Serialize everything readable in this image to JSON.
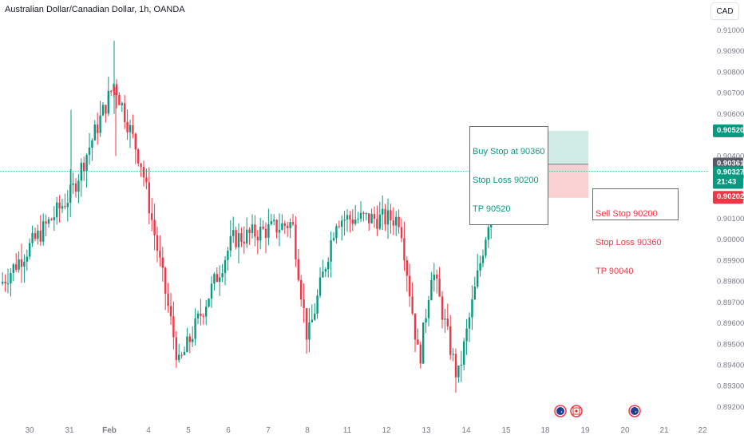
{
  "header": {
    "title": "Australian Dollar/Canadian Dollar, 1h, OANDA",
    "currency_button": "CAD"
  },
  "annotations": {
    "buy": [
      "Buy Stop at 90360",
      "Stop Loss 90200",
      "TP 90520"
    ],
    "sell": [
      "Sell Stop 90200",
      "Stop Loss 90360",
      "TP 90040"
    ]
  },
  "price_labels": {
    "tp": "0.90520",
    "last": "0.90361",
    "current": "0.90327",
    "countdown": "21:43",
    "stop": "0.90202"
  },
  "colors": {
    "up": "#089981",
    "down": "#f23645",
    "tp_zone": "#d1ece6",
    "sl_zone": "#f9d1d3",
    "grid_text": "#787b86",
    "last_line": "#089981",
    "dark_label": "#555a66"
  },
  "event_icons": [
    {
      "date": "18",
      "icon": "australia-flag-icon"
    },
    {
      "date": "19",
      "icon": "canada-flag-icon"
    },
    {
      "date": "20",
      "icon": "australia-flag-icon"
    }
  ],
  "chart_data": {
    "type": "candlestick",
    "title": "Australian Dollar/Canadian Dollar, 1h, OANDA",
    "y_range": [
      0.8915,
      0.9107
    ],
    "y_ticks": [
      "0.91000",
      "0.90900",
      "0.90800",
      "0.90700",
      "0.90600",
      "0.90500",
      "0.90400",
      "0.90300",
      "0.90200",
      "0.90100",
      "0.90000",
      "0.89900",
      "0.89800",
      "0.89700",
      "0.89600",
      "0.89500",
      "0.89400",
      "0.89300",
      "0.89200"
    ],
    "x_ticks": [
      "30",
      "31",
      "Feb",
      "4",
      "5",
      "6",
      "7",
      "8",
      "11",
      "12",
      "13",
      "14",
      "15",
      "18",
      "19",
      "20",
      "21",
      "22"
    ],
    "trade_setup": {
      "take_profit": 0.9052,
      "entry": 0.9036,
      "stop": 0.902
    },
    "key_points": [
      {
        "label": "start",
        "price": 0.8979
      },
      {
        "label": "31-spike-high",
        "price": 0.9062
      },
      {
        "label": "Feb-high",
        "price": 0.9095
      },
      {
        "label": "Feb-close",
        "price": 0.9072
      },
      {
        "label": "4-high",
        "price": 0.9036
      },
      {
        "label": "5-low",
        "price": 0.894
      },
      {
        "label": "6-high",
        "price": 0.9
      },
      {
        "label": "7-high",
        "price": 0.9008
      },
      {
        "label": "8-low",
        "price": 0.8952
      },
      {
        "label": "11-high",
        "price": 0.901
      },
      {
        "label": "12-high",
        "price": 0.901
      },
      {
        "label": "13-low",
        "price": 0.8941
      },
      {
        "label": "13-high",
        "price": 0.8987
      },
      {
        "label": "14-low",
        "price": 0.8933
      },
      {
        "label": "14-high",
        "price": 0.8977
      },
      {
        "label": "15-high",
        "price": 0.9012
      },
      {
        "label": "last-high",
        "price": 0.9038
      },
      {
        "label": "last",
        "price": 0.90327
      }
    ]
  }
}
